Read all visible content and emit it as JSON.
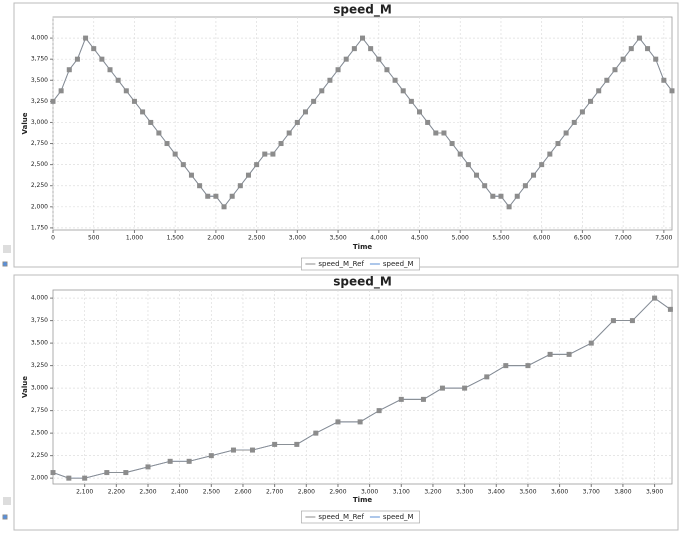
{
  "chart_data": [
    {
      "type": "line",
      "title": "speed_M",
      "x_label": "Time",
      "y_label": "Value",
      "grid": true,
      "legend": "bottom",
      "xlim": [
        0,
        7600
      ],
      "ylim": [
        1725,
        4250
      ],
      "xticks": [
        0,
        500,
        {
          "value": 1000,
          "label": "1,000"
        },
        {
          "value": 1500,
          "label": "1,500"
        },
        {
          "value": 2000,
          "label": "2,000"
        },
        {
          "value": 2500,
          "label": "2,500"
        },
        {
          "value": 3000,
          "label": "3,000"
        },
        {
          "value": 3500,
          "label": "3,500"
        },
        {
          "value": 4000,
          "label": "4,000"
        },
        {
          "value": 4500,
          "label": "4,500"
        },
        {
          "value": 5000,
          "label": "5,000"
        },
        {
          "value": 5500,
          "label": "5,500"
        },
        {
          "value": 6000,
          "label": "6,000"
        },
        {
          "value": 6500,
          "label": "6,500"
        },
        {
          "value": 7000,
          "label": "7,000"
        },
        {
          "value": 7500,
          "label": "7,500"
        }
      ],
      "yticks": [
        {
          "value": 1750,
          "label": "1,750"
        },
        {
          "value": 2000,
          "label": "2,000"
        },
        {
          "value": 2250,
          "label": "2,250"
        },
        {
          "value": 2500,
          "label": "2,500"
        },
        {
          "value": 2750,
          "label": "2,750"
        },
        {
          "value": 3000,
          "label": "3,000"
        },
        {
          "value": 3250,
          "label": "3,250"
        },
        {
          "value": 3500,
          "label": "3,500"
        },
        {
          "value": 3750,
          "label": "3,750"
        },
        {
          "value": 4000,
          "label": "4,000"
        }
      ],
      "x": [
        0,
        100,
        200,
        300,
        400,
        500,
        600,
        700,
        800,
        900,
        1000,
        1100,
        1200,
        1300,
        1400,
        1500,
        1600,
        1700,
        1800,
        1900,
        2000,
        2100,
        2200,
        2300,
        2400,
        2500,
        2600,
        2700,
        2800,
        2900,
        3000,
        3100,
        3200,
        3300,
        3400,
        3500,
        3600,
        3700,
        3800,
        3900,
        4000,
        4100,
        4200,
        4300,
        4400,
        4500,
        4600,
        4700,
        4800,
        4900,
        5000,
        5100,
        5200,
        5300,
        5400,
        5500,
        5600,
        5700,
        5800,
        5900,
        6000,
        6100,
        6200,
        6300,
        6400,
        6500,
        6600,
        6700,
        6800,
        6900,
        7000,
        7100,
        7200,
        7300,
        7400,
        7500,
        7600
      ],
      "series": [
        {
          "name": "speed_M_Ref",
          "color": "#8c8c8c",
          "marker": "square",
          "values": [
            3250,
            3375,
            3625,
            3750,
            4000,
            3875,
            3750,
            3625,
            3500,
            3375,
            3250,
            3125,
            3000,
            2875,
            2750,
            2625,
            2500,
            2375,
            2250,
            2125,
            2125,
            2000,
            2125,
            2250,
            2375,
            2500,
            2625,
            2625,
            2750,
            2875,
            3000,
            3125,
            3250,
            3375,
            3500,
            3625,
            3750,
            3875,
            4000,
            3875,
            3750,
            3625,
            3500,
            3375,
            3250,
            3125,
            3000,
            2875,
            2875,
            2750,
            2625,
            2500,
            2375,
            2250,
            2125,
            2125,
            2000,
            2125,
            2250,
            2375,
            2500,
            2625,
            2750,
            2875,
            3000,
            3125,
            3250,
            3375,
            3500,
            3625,
            3750,
            3875,
            4000,
            3875,
            3750,
            3500,
            3375
          ]
        },
        {
          "name": "speed_M",
          "color": "#5b8fd6",
          "marker": "diamond",
          "values": [
            3250,
            3375,
            3625,
            3750,
            4000,
            3875,
            3750,
            3625,
            3500,
            3375,
            3250,
            3125,
            3000,
            2875,
            2750,
            2625,
            2500,
            2375,
            2250,
            2125,
            2125,
            2000,
            2125,
            2250,
            2375,
            2500,
            2625,
            2625,
            2750,
            2875,
            3000,
            3125,
            3250,
            3375,
            3500,
            3625,
            3750,
            3875,
            4000,
            3875,
            3750,
            3625,
            3500,
            3375,
            3250,
            3125,
            3000,
            2875,
            2875,
            2750,
            2625,
            2500,
            2375,
            2250,
            2125,
            2125,
            2000,
            2125,
            2250,
            2375,
            2500,
            2625,
            2750,
            2875,
            3000,
            3125,
            3250,
            3375,
            3500,
            3625,
            3750,
            3875,
            4000,
            3875,
            3750,
            3500,
            3375
          ]
        }
      ]
    },
    {
      "type": "line",
      "title": "speed_M",
      "x_label": "Time",
      "y_label": "Value",
      "grid": true,
      "legend": "bottom",
      "xlim": [
        2000,
        3955
      ],
      "ylim": [
        1935,
        4090
      ],
      "xticks": [
        {
          "value": 2100,
          "label": "2,100"
        },
        {
          "value": 2200,
          "label": "2,200"
        },
        {
          "value": 2300,
          "label": "2,300"
        },
        {
          "value": 2400,
          "label": "2,400"
        },
        {
          "value": 2500,
          "label": "2,500"
        },
        {
          "value": 2600,
          "label": "2,600"
        },
        {
          "value": 2700,
          "label": "2,700"
        },
        {
          "value": 2800,
          "label": "2,800"
        },
        {
          "value": 2900,
          "label": "2,900"
        },
        {
          "value": 3000,
          "label": "3,000"
        },
        {
          "value": 3100,
          "label": "3,100"
        },
        {
          "value": 3200,
          "label": "3,200"
        },
        {
          "value": 3300,
          "label": "3,300"
        },
        {
          "value": 3400,
          "label": "3,400"
        },
        {
          "value": 3500,
          "label": "3,500"
        },
        {
          "value": 3600,
          "label": "3,600"
        },
        {
          "value": 3700,
          "label": "3,700"
        },
        {
          "value": 3800,
          "label": "3,800"
        },
        {
          "value": 3900,
          "label": "3,900"
        }
      ],
      "yticks": [
        {
          "value": 2000,
          "label": "2,000"
        },
        {
          "value": 2250,
          "label": "2,250"
        },
        {
          "value": 2500,
          "label": "2,500"
        },
        {
          "value": 2750,
          "label": "2,750"
        },
        {
          "value": 3000,
          "label": "3,000"
        },
        {
          "value": 3250,
          "label": "3,250"
        },
        {
          "value": 3500,
          "label": "3,500"
        },
        {
          "value": 3750,
          "label": "3,750"
        },
        {
          "value": 4000,
          "label": "4,000"
        }
      ],
      "x": [
        2000,
        2050,
        2100,
        2170,
        2230,
        2300,
        2370,
        2430,
        2500,
        2570,
        2630,
        2700,
        2770,
        2830,
        2900,
        2970,
        3030,
        3100,
        3170,
        3230,
        3300,
        3370,
        3430,
        3500,
        3570,
        3630,
        3700,
        3770,
        3830,
        3900,
        3950
      ],
      "series": [
        {
          "name": "speed_M_Ref",
          "color": "#8c8c8c",
          "marker": "square",
          "values": [
            2062,
            2000,
            2000,
            2062,
            2062,
            2125,
            2187,
            2187,
            2250,
            2312,
            2312,
            2375,
            2375,
            2500,
            2625,
            2625,
            2750,
            2875,
            2875,
            3000,
            3000,
            3125,
            3250,
            3250,
            3375,
            3375,
            3500,
            3750,
            3750,
            4000,
            3875
          ]
        },
        {
          "name": "speed_M",
          "color": "#5b8fd6",
          "marker": "diamond",
          "values": [
            2062,
            2000,
            2000,
            2062,
            2062,
            2125,
            2187,
            2187,
            2250,
            2312,
            2312,
            2375,
            2375,
            2500,
            2625,
            2625,
            2750,
            2875,
            2875,
            3000,
            3000,
            3125,
            3250,
            3250,
            3375,
            3375,
            3500,
            3750,
            3750,
            4000,
            3875
          ]
        }
      ]
    }
  ]
}
